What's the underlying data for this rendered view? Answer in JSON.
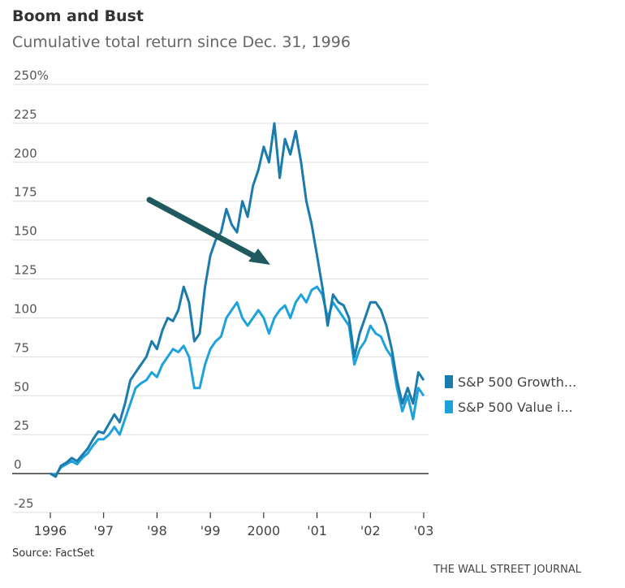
{
  "chart_data": {
    "type": "line",
    "title": "Boom and Bust",
    "subtitle": "Cumulative total return since Dec. 31, 1996",
    "source": "Source: FactSet",
    "credit": "THE WALL STREET JOURNAL",
    "x": [
      1996.0,
      1996.1,
      1996.2,
      1996.3,
      1996.4,
      1996.5,
      1996.6,
      1996.7,
      1996.8,
      1996.9,
      1997.0,
      1997.1,
      1997.2,
      1997.3,
      1997.4,
      1997.5,
      1997.6,
      1997.7,
      1997.8,
      1997.9,
      1998.0,
      1998.1,
      1998.2,
      1998.3,
      1998.4,
      1998.5,
      1998.6,
      1998.7,
      1998.8,
      1998.9,
      1999.0,
      1999.1,
      1999.2,
      1999.3,
      1999.4,
      1999.5,
      1999.6,
      1999.7,
      1999.8,
      1999.9,
      2000.0,
      2000.1,
      2000.2,
      2000.3,
      2000.4,
      2000.5,
      2000.6,
      2000.7,
      2000.8,
      2000.9,
      2001.0,
      2001.1,
      2001.2,
      2001.3,
      2001.4,
      2001.5,
      2001.6,
      2001.7,
      2001.8,
      2001.9,
      2002.0,
      2002.1,
      2002.2,
      2002.3,
      2002.4,
      2002.5,
      2002.6,
      2002.7,
      2002.8,
      2002.9,
      2003.0
    ],
    "series": [
      {
        "name": "S&P 500 Growth...",
        "color": "#1b7bac",
        "values": [
          0,
          -2,
          5,
          7,
          10,
          8,
          12,
          16,
          22,
          27,
          26,
          32,
          38,
          33,
          45,
          60,
          65,
          70,
          75,
          85,
          80,
          92,
          100,
          98,
          105,
          120,
          110,
          85,
          90,
          120,
          140,
          150,
          155,
          170,
          160,
          155,
          175,
          165,
          185,
          195,
          210,
          200,
          225,
          190,
          215,
          205,
          220,
          200,
          175,
          160,
          140,
          120,
          95,
          115,
          110,
          108,
          100,
          75,
          90,
          100,
          110,
          110,
          105,
          95,
          80,
          60,
          45,
          55,
          45,
          65,
          60
        ]
      },
      {
        "name": "S&P 500 Value i...",
        "color": "#1ea2dc",
        "values": [
          0,
          -1,
          4,
          6,
          8,
          6,
          10,
          13,
          18,
          22,
          22,
          25,
          30,
          25,
          35,
          45,
          55,
          58,
          60,
          65,
          62,
          70,
          75,
          80,
          78,
          82,
          75,
          55,
          55,
          70,
          80,
          85,
          88,
          100,
          105,
          110,
          100,
          95,
          100,
          105,
          100,
          90,
          100,
          105,
          108,
          100,
          110,
          115,
          110,
          118,
          120,
          115,
          100,
          110,
          105,
          100,
          95,
          70,
          80,
          85,
          95,
          90,
          88,
          80,
          75,
          55,
          40,
          50,
          35,
          55,
          50
        ]
      }
    ],
    "xlim": [
      1996,
      2003
    ],
    "xticks": [
      {
        "value": 1996,
        "label": "1996"
      },
      {
        "value": 1997,
        "label": "'97"
      },
      {
        "value": 1998,
        "label": "'98"
      },
      {
        "value": 1999,
        "label": "'99"
      },
      2000,
      {
        "value": 2001,
        "label": "'01"
      },
      {
        "value": 2002,
        "label": "'02"
      },
      {
        "value": 2003,
        "label": "'03"
      }
    ],
    "ylim": [
      -25,
      250
    ],
    "yticks": [
      -25,
      0,
      25,
      50,
      75,
      100,
      125,
      150,
      175,
      200,
      225,
      {
        "value": 250,
        "label": "250%"
      }
    ],
    "grid": true
  }
}
